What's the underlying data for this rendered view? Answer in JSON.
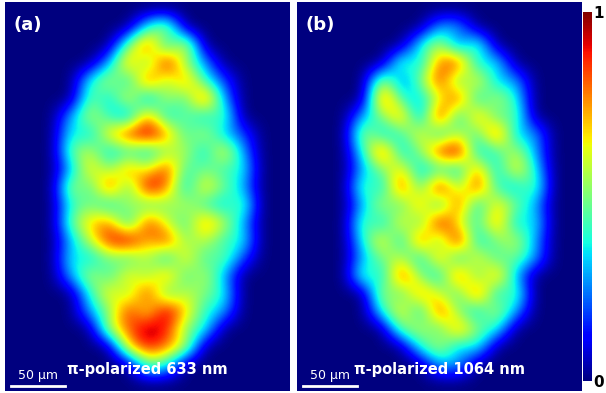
{
  "chart_data": [
    {
      "type": "heatmap",
      "title": "(a)",
      "caption": "π-polarized 633 nm",
      "scale_bar": "50 μm",
      "tick_labels": false,
      "cells": [
        [
          0,
          0,
          0,
          0,
          0,
          0,
          0,
          0,
          0,
          0,
          0,
          0,
          0,
          0,
          0
        ],
        [
          0,
          0,
          0,
          0,
          0,
          0,
          0,
          0.4,
          0.6,
          0,
          0,
          0,
          0,
          0,
          0
        ],
        [
          0,
          0,
          0,
          0,
          0,
          0,
          0.5,
          0.9,
          0.3,
          0.7,
          0,
          0,
          0,
          0,
          0
        ],
        [
          0,
          0,
          0,
          0,
          0,
          0.3,
          0.8,
          0.4,
          1.0,
          0.5,
          0.3,
          0,
          0,
          0,
          0
        ],
        [
          0,
          0,
          0,
          0,
          0.4,
          0.6,
          0.3,
          0.9,
          0.5,
          0.8,
          0.4,
          0.2,
          0,
          0,
          0
        ],
        [
          0,
          0,
          0,
          0,
          0.5,
          0.3,
          0.7,
          0.2,
          0.6,
          0.4,
          0.9,
          0.3,
          0,
          0,
          0
        ],
        [
          0,
          0,
          0,
          0.3,
          0.6,
          0.4,
          0.2,
          0.8,
          0.3,
          0.5,
          0.3,
          0.5,
          0,
          0,
          0
        ],
        [
          0,
          0,
          0,
          0.4,
          0.3,
          0.7,
          0.9,
          1.0,
          0.8,
          0.4,
          0.6,
          0.3,
          0.2,
          0,
          0
        ],
        [
          0,
          0,
          0,
          0.5,
          0.6,
          0.3,
          0.4,
          0.3,
          0.5,
          0.6,
          0.3,
          0.7,
          0.3,
          0,
          0
        ],
        [
          0,
          0,
          0,
          0.3,
          0.7,
          0.5,
          0.8,
          0.6,
          0.9,
          0.4,
          0.5,
          0.4,
          0.4,
          0,
          0
        ],
        [
          0,
          0,
          0,
          0.6,
          0.4,
          0.9,
          0.4,
          1.0,
          0.8,
          0.3,
          0.7,
          0.5,
          0.3,
          0,
          0
        ],
        [
          0,
          0,
          0,
          0.4,
          0.5,
          0.3,
          0.6,
          0.4,
          0.5,
          0.6,
          0.4,
          0.3,
          0.5,
          0,
          0
        ],
        [
          0,
          0,
          0,
          0.5,
          0.7,
          0.8,
          0.3,
          0.9,
          0.6,
          0.4,
          0.8,
          0.6,
          0.3,
          0,
          0
        ],
        [
          0,
          0,
          0,
          0.3,
          0.6,
          0.9,
          1.0,
          0.7,
          0.9,
          0.5,
          0.6,
          0.4,
          0.4,
          0,
          0
        ],
        [
          0,
          0,
          0,
          0.4,
          0.3,
          0.5,
          0.4,
          0.6,
          0.3,
          0.7,
          0.4,
          0.5,
          0.2,
          0,
          0
        ],
        [
          0,
          0,
          0,
          0.3,
          0.6,
          0.4,
          0.7,
          0.5,
          0.8,
          0.4,
          0.6,
          0.3,
          0,
          0,
          0
        ],
        [
          0,
          0,
          0,
          0,
          0.4,
          0.7,
          0.5,
          0.9,
          0.4,
          0.6,
          0.5,
          0.4,
          0,
          0,
          0
        ],
        [
          0,
          0,
          0,
          0,
          0.3,
          0.5,
          0.9,
          0.6,
          1.0,
          0.7,
          0.4,
          0.3,
          0,
          0,
          0
        ],
        [
          0,
          0,
          0,
          0,
          0,
          0.6,
          0.8,
          1.0,
          0.9,
          0.5,
          0.4,
          0,
          0,
          0,
          0
        ],
        [
          0,
          0,
          0,
          0,
          0,
          0,
          0.7,
          0.9,
          0.8,
          0.6,
          0,
          0,
          0,
          0,
          0
        ],
        [
          0,
          0,
          0,
          0,
          0,
          0,
          0,
          0.5,
          0.4,
          0,
          0,
          0,
          0,
          0,
          0
        ],
        [
          0,
          0,
          0,
          0,
          0,
          0,
          0,
          0,
          0,
          0,
          0,
          0,
          0,
          0,
          0
        ]
      ]
    },
    {
      "type": "heatmap",
      "title": "(b)",
      "caption": "π-polarized 1064 nm",
      "scale_bar": "50 μm",
      "tick_labels": false,
      "colorbar_range": [
        0,
        1
      ],
      "colorbar_ticks": [
        0,
        1
      ],
      "cells": [
        [
          0,
          0,
          0,
          0,
          0,
          0,
          0,
          0,
          0,
          0,
          0,
          0,
          0,
          0,
          0
        ],
        [
          0,
          0,
          0,
          0,
          0,
          0,
          0,
          0.3,
          0.3,
          0,
          0,
          0,
          0,
          0,
          0
        ],
        [
          0,
          0,
          0,
          0,
          0,
          0,
          0.4,
          0.6,
          0.2,
          0.5,
          0,
          0,
          0,
          0,
          0
        ],
        [
          0,
          0,
          0,
          0,
          0,
          0.5,
          0.3,
          0.8,
          0.9,
          0.3,
          0.4,
          0,
          0,
          0,
          0
        ],
        [
          0,
          0,
          0,
          0,
          0.6,
          0.2,
          0.5,
          0.9,
          0.4,
          0.7,
          0.3,
          0.3,
          0,
          0,
          0
        ],
        [
          0,
          0,
          0,
          0,
          0.9,
          0.4,
          0.3,
          0.6,
          0.9,
          0.3,
          0.6,
          0.4,
          0,
          0,
          0
        ],
        [
          0,
          0,
          0,
          0.3,
          0.5,
          0.8,
          0.2,
          1.0,
          0.3,
          0.8,
          0.4,
          0.5,
          0,
          0,
          0
        ],
        [
          0,
          0,
          0,
          0.6,
          0.3,
          0.4,
          0.7,
          0.3,
          0.6,
          0.4,
          0.9,
          0.3,
          0.3,
          0,
          0
        ],
        [
          0,
          0,
          0,
          0.4,
          0.9,
          0.3,
          0.5,
          0.9,
          1.0,
          0.3,
          0.4,
          0.6,
          0.3,
          0,
          0
        ],
        [
          0,
          0,
          0,
          0.3,
          0.5,
          0.7,
          0.3,
          0.4,
          0.3,
          0.8,
          0.3,
          0.7,
          0.4,
          0,
          0
        ],
        [
          0,
          0,
          0,
          0.5,
          0.3,
          0.9,
          0.4,
          1.0,
          0.5,
          0.9,
          0.4,
          0.3,
          0.5,
          0,
          0
        ],
        [
          0,
          0,
          0,
          0.3,
          0.6,
          0.4,
          0.8,
          0.3,
          0.9,
          0.3,
          0.7,
          0.5,
          0.3,
          0,
          0
        ],
        [
          0,
          0,
          0,
          0.5,
          0.3,
          0.7,
          0.4,
          1.0,
          0.6,
          0.4,
          0.8,
          0.3,
          0.4,
          0,
          0
        ],
        [
          0,
          0,
          0,
          0.4,
          0.7,
          0.3,
          0.9,
          0.4,
          1.0,
          0.3,
          0.5,
          0.6,
          0.3,
          0,
          0
        ],
        [
          0,
          0,
          0,
          0.3,
          0.5,
          0.6,
          0.3,
          0.8,
          0.3,
          0.7,
          0.4,
          0.5,
          0.3,
          0,
          0
        ],
        [
          0,
          0,
          0,
          0.5,
          0.3,
          0.9,
          0.5,
          0.3,
          0.9,
          0.4,
          0.8,
          0.3,
          0,
          0,
          0
        ],
        [
          0,
          0,
          0,
          0,
          0.6,
          0.4,
          0.8,
          0.6,
          0.4,
          0.9,
          0.3,
          0.5,
          0,
          0,
          0
        ],
        [
          0,
          0,
          0,
          0,
          0.4,
          0.7,
          0.3,
          0.9,
          0.5,
          0.3,
          0.6,
          0.3,
          0,
          0,
          0
        ],
        [
          0,
          0,
          0,
          0,
          0,
          0.5,
          0.6,
          0.4,
          0.8,
          0.5,
          0.4,
          0,
          0,
          0,
          0
        ],
        [
          0,
          0,
          0,
          0,
          0,
          0,
          0.4,
          0.6,
          0.3,
          0.4,
          0,
          0,
          0,
          0,
          0
        ],
        [
          0,
          0,
          0,
          0,
          0,
          0,
          0,
          0.3,
          0.3,
          0,
          0,
          0,
          0,
          0,
          0
        ],
        [
          0,
          0,
          0,
          0,
          0,
          0,
          0,
          0,
          0,
          0,
          0,
          0,
          0,
          0,
          0
        ]
      ]
    }
  ]
}
